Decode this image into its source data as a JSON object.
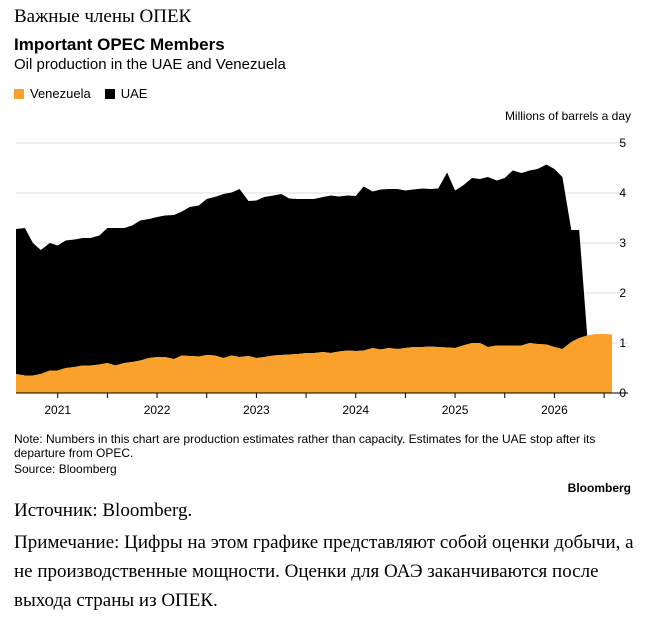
{
  "header": {
    "title_ru": "Важные члены ОПЕК",
    "title_en": "Important OPEC Members",
    "subtitle": "Oil production in the UAE and Venezuela",
    "unit": "Millions of barrels a day"
  },
  "legend": {
    "venezuela": "Venezuela",
    "uae": "UAE"
  },
  "colors": {
    "venezuela": "#f9a12a",
    "uae": "#000000",
    "grid": "#dddddd"
  },
  "chart_data": {
    "type": "area",
    "stacked": true,
    "x": [
      2020.58,
      2020.67,
      2020.75,
      2020.83,
      2020.92,
      2021.0,
      2021.08,
      2021.17,
      2021.25,
      2021.33,
      2021.42,
      2021.5,
      2021.58,
      2021.67,
      2021.75,
      2021.83,
      2021.92,
      2022.0,
      2022.08,
      2022.17,
      2022.25,
      2022.33,
      2022.42,
      2022.5,
      2022.58,
      2022.67,
      2022.75,
      2022.83,
      2022.92,
      2023.0,
      2023.08,
      2023.17,
      2023.25,
      2023.33,
      2023.42,
      2023.5,
      2023.58,
      2023.67,
      2023.75,
      2023.83,
      2023.92,
      2024.0,
      2024.08,
      2024.17,
      2024.25,
      2024.33,
      2024.42,
      2024.5,
      2024.58,
      2024.67,
      2024.75,
      2024.83,
      2024.92,
      2025.0,
      2025.08,
      2025.17,
      2025.25,
      2025.33,
      2025.42,
      2025.5,
      2025.58,
      2025.67,
      2025.75,
      2025.83,
      2025.92,
      2026.0,
      2026.08,
      2026.17,
      2026.25,
      2026.33,
      2026.42,
      2026.5,
      2026.58
    ],
    "series": [
      {
        "name": "Venezuela",
        "values": [
          0.38,
          0.35,
          0.35,
          0.38,
          0.45,
          0.45,
          0.5,
          0.52,
          0.55,
          0.55,
          0.57,
          0.6,
          0.55,
          0.6,
          0.62,
          0.65,
          0.7,
          0.72,
          0.72,
          0.68,
          0.75,
          0.74,
          0.73,
          0.76,
          0.75,
          0.7,
          0.75,
          0.72,
          0.74,
          0.7,
          0.72,
          0.75,
          0.76,
          0.77,
          0.78,
          0.8,
          0.8,
          0.82,
          0.8,
          0.83,
          0.85,
          0.84,
          0.85,
          0.9,
          0.87,
          0.9,
          0.88,
          0.9,
          0.92,
          0.92,
          0.93,
          0.92,
          0.91,
          0.9,
          0.95,
          1.0,
          1.0,
          0.92,
          0.95,
          0.95,
          0.95,
          0.95,
          1.0,
          0.98,
          0.97,
          0.92,
          0.88,
          1.02,
          1.1,
          1.15,
          1.18,
          1.18,
          1.17
        ]
      },
      {
        "name": "UAE",
        "values": [
          2.9,
          2.95,
          2.65,
          2.48,
          2.55,
          2.5,
          2.55,
          2.55,
          2.55,
          2.55,
          2.58,
          2.7,
          2.75,
          2.7,
          2.73,
          2.8,
          2.78,
          2.8,
          2.83,
          2.88,
          2.88,
          2.98,
          3.02,
          3.12,
          3.17,
          3.28,
          3.26,
          3.36,
          3.1,
          3.15,
          3.2,
          3.2,
          3.22,
          3.12,
          3.1,
          3.08,
          3.08,
          3.1,
          3.15,
          3.1,
          3.1,
          3.1,
          3.28,
          3.13,
          3.2,
          3.18,
          3.2,
          3.15,
          3.15,
          3.17,
          3.15,
          3.17,
          3.5,
          3.15,
          3.2,
          3.3,
          3.28,
          3.4,
          3.3,
          3.35,
          3.5,
          3.45,
          3.45,
          3.5,
          3.6,
          3.56,
          3.44,
          2.24,
          2.16,
          0,
          0,
          0,
          0
        ]
      }
    ],
    "xlabel": "",
    "ylabel": "Millions of barrels a day",
    "ylim": [
      0,
      5
    ],
    "yticks": [
      0,
      1,
      2,
      3,
      4,
      5
    ],
    "xticks": [
      "2021",
      "2022",
      "2023",
      "2024",
      "2025",
      "2026"
    ],
    "grid": true
  },
  "footer": {
    "note": "Note: Numbers in this chart are production estimates rather than capacity. Estimates for the UAE stop after its departure from OPEC.",
    "source": "Source: Bloomberg",
    "brand": "Bloomberg",
    "source_ru": "Источник: Bloomberg.",
    "note_ru": "Примечание: Цифры на этом графике представляют собой оценки добычи, а не производственные мощности. Оценки для ОАЭ заканчиваются после выхода страны из ОПЕК."
  }
}
